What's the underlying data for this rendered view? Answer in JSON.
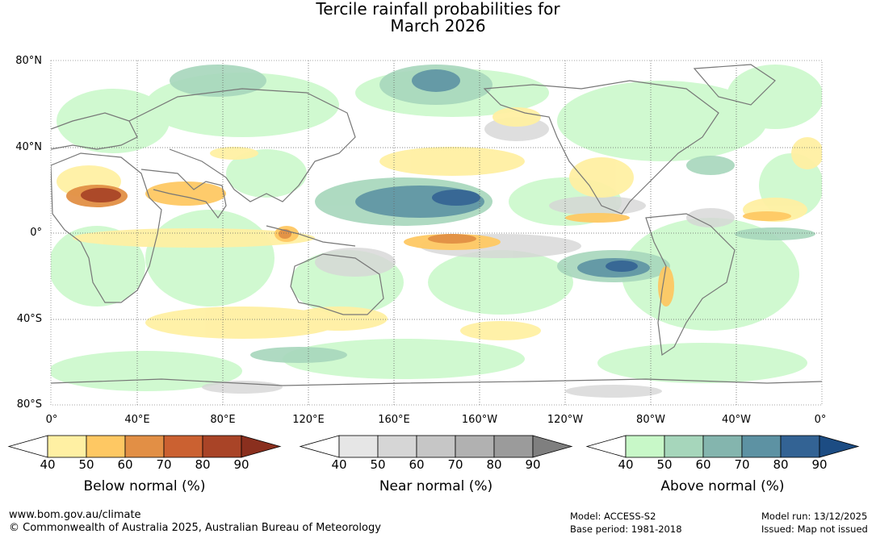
{
  "title": {
    "line1": "Tercile rainfall probabilities for",
    "line2": "March 2026"
  },
  "map": {
    "lat_labels": [
      "80°N",
      "40°N",
      "0°",
      "40°S",
      "80°S"
    ],
    "lon_labels": [
      "0°",
      "40°E",
      "80°E",
      "120°E",
      "160°E",
      "160°W",
      "120°W",
      "80°W",
      "40°W",
      "0°"
    ]
  },
  "legends": [
    {
      "title": "Below normal (%)",
      "ticks": [
        "40",
        "50",
        "60",
        "70",
        "80",
        "90"
      ],
      "colors": [
        "#fff0a3",
        "#fec863",
        "#e28f45",
        "#cb6131",
        "#a94427",
        "#8a2f1e"
      ]
    },
    {
      "title": "Near normal (%)",
      "ticks": [
        "40",
        "50",
        "60",
        "70",
        "80",
        "90"
      ],
      "colors": [
        "#e6e6e6",
        "#d6d6d6",
        "#c6c6c6",
        "#b1b1b1",
        "#9b9b9b",
        "#7f7f7f"
      ]
    },
    {
      "title": "Above normal (%)",
      "ticks": [
        "40",
        "50",
        "60",
        "70",
        "80",
        "90"
      ],
      "colors": [
        "#c8f8c8",
        "#a6d6bb",
        "#84b5ae",
        "#5d92a3",
        "#336394",
        "#1c4c83"
      ]
    }
  ],
  "footer": {
    "website": "www.bom.gov.au/climate",
    "copyright": "© Commonwealth of Australia 2025, Australian Bureau of Meteorology",
    "model": "Model: ACCESS-S2",
    "base_period": "Base period: 1981-2018",
    "model_run": "Model run: 13/12/2025",
    "issued": "Issued: Map not issued"
  },
  "colors": {
    "land_outline": "#777777",
    "grid": "#666666",
    "ocean_bg": "#ffffff"
  }
}
